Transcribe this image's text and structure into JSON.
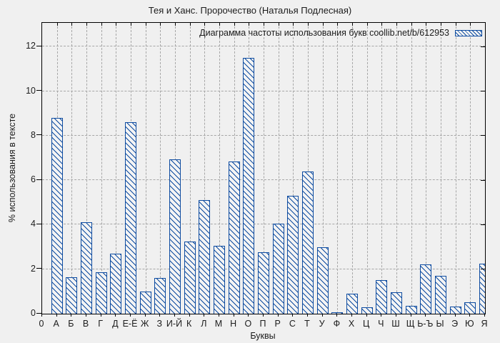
{
  "title": "Тея и Ханс. Пророчество (Наталья Подлесная)",
  "legend": {
    "label": "Диаграмма частоты использования букв coollib.net/b/612953"
  },
  "axes": {
    "xlabel": "Буквы",
    "ylabel": "% использования в тексте",
    "x_origin_label": "0",
    "y_ticks": [
      0,
      2,
      4,
      6,
      8,
      10,
      12
    ]
  },
  "colors": {
    "bar": "#0d4ba0",
    "grid": "#a6a6a6",
    "axis": "#000000",
    "background": "#f0f0f0",
    "text": "#1c1c1c"
  },
  "chart_data": {
    "type": "bar",
    "title": "Тея и Ханс. Пророчество (Наталья Подлесная)",
    "legend_label": "Диаграмма частоты использования букв coollib.net/b/612953",
    "xlabel": "Буквы",
    "ylabel": "% использования в тексте",
    "categories": [
      "А",
      "Б",
      "В",
      "Г",
      "Д",
      "Е-Ё",
      "Ж",
      "З",
      "И-Й",
      "К",
      "Л",
      "М",
      "Н",
      "О",
      "П",
      "Р",
      "С",
      "Т",
      "У",
      "Ф",
      "Х",
      "Ц",
      "Ч",
      "Ш",
      "Щ",
      "Ь-Ъ",
      "Ы",
      "Э",
      "Ю",
      "Я"
    ],
    "values": [
      8.8,
      1.65,
      4.1,
      1.85,
      2.7,
      8.6,
      1.0,
      1.6,
      6.95,
      3.25,
      5.1,
      3.05,
      6.85,
      11.5,
      2.75,
      4.05,
      5.3,
      6.4,
      3.0,
      0.07,
      0.9,
      0.3,
      1.5,
      0.95,
      0.35,
      2.2,
      1.7,
      0.33,
      0.5,
      2.25
    ],
    "ylim": [
      0,
      13.07
    ],
    "y_ticks": [
      0,
      2,
      4,
      6,
      8,
      10,
      12
    ],
    "grid": true,
    "hatch": "\\\\",
    "bar_fill": "none",
    "legend_position": "top-right"
  }
}
